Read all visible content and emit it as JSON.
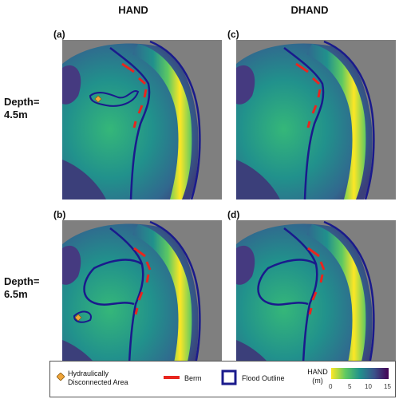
{
  "columns": [
    "HAND",
    "DHAND"
  ],
  "rows": [
    "Depth=\n4.5m",
    "Depth=\n6.5m"
  ],
  "row_labels": [
    {
      "line1": "Depth=",
      "line2": "4.5m"
    },
    {
      "line1": "Depth=",
      "line2": "6.5m"
    }
  ],
  "panels": [
    {
      "label": "(a)",
      "column": "HAND",
      "depth": "4.5m"
    },
    {
      "label": "(c)",
      "column": "DHAND",
      "depth": "4.5m"
    },
    {
      "label": "(b)",
      "column": "HAND",
      "depth": "6.5m"
    },
    {
      "label": "(d)",
      "column": "DHAND",
      "depth": "6.5m"
    }
  ],
  "legend": {
    "disconnected": "Hydraulically\nDisconnected Area",
    "disconnected_line1": "Hydraulically",
    "disconnected_line2": "Disconnected Area",
    "berm": "Berm",
    "flood_outline": "Flood Outline",
    "colorbar_title_line1": "HAND",
    "colorbar_title_line2": "(m)",
    "ticks": [
      "0",
      "5",
      "10",
      "15"
    ]
  },
  "colors": {
    "berm": "#e8261f",
    "flood_outline": "#1a1a8c",
    "disconnected": "#f0a53a",
    "nodata": "#7f7f7f",
    "colormap": [
      "#fde725",
      "#5ec962",
      "#21918c",
      "#3b528b",
      "#440154"
    ]
  }
}
